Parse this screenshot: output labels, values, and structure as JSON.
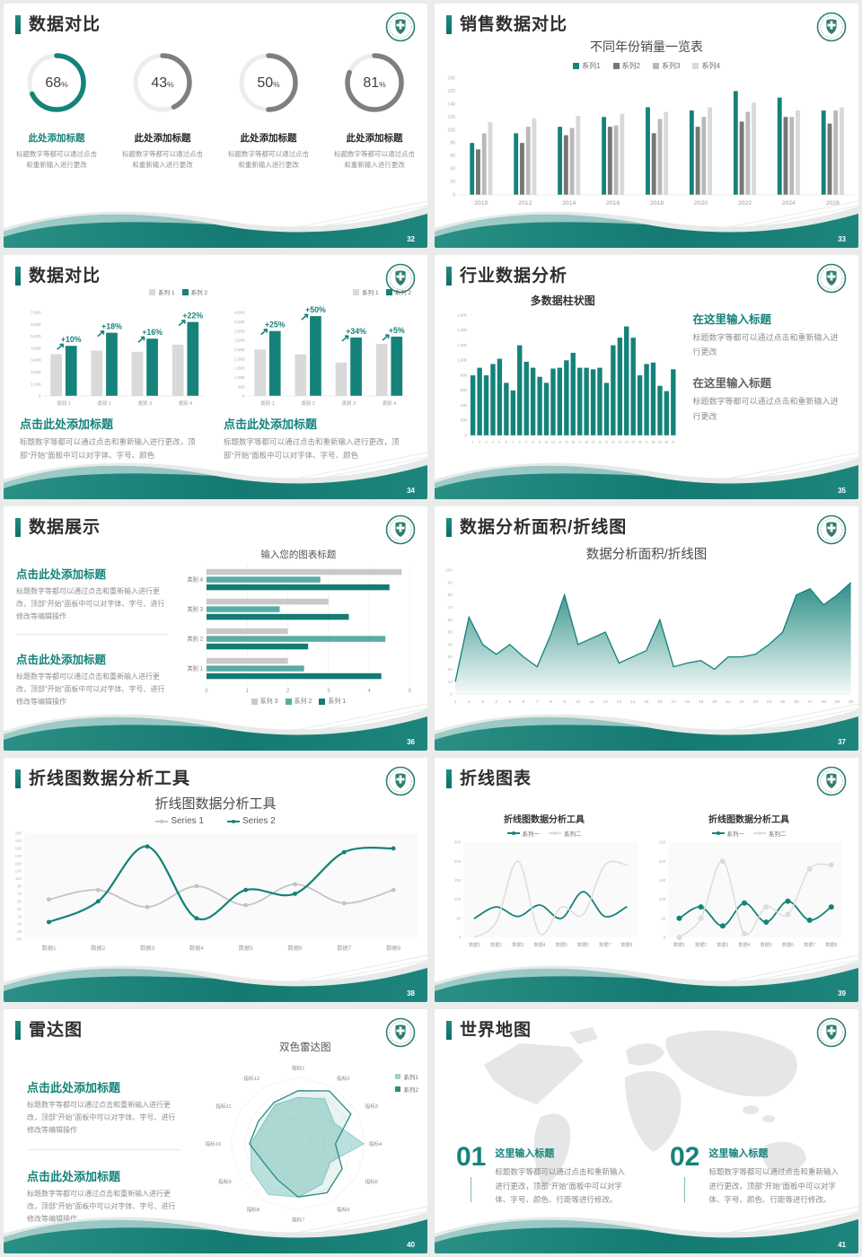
{
  "colors": {
    "teal": "#15837a",
    "teal_mid": "#58aca4",
    "teal_light": "#9fd2cc",
    "gray_dark": "#767676",
    "gray_mid": "#b9b9b9",
    "gray_light": "#d9d9d9",
    "text_dark": "#2d2d2d",
    "text_gray": "#8f8f8f"
  },
  "logo": {
    "name": "hospital-emblem"
  },
  "slides": [
    {
      "page": "32",
      "title": "数据对比",
      "type": "donuts",
      "chart_data": {
        "type": "donut-set",
        "items": [
          {
            "value": 68,
            "suffix": "%",
            "heading": "此处添加标题",
            "desc": "标题数字等都可以通过点击和重新输入进行更改",
            "highlight": true
          },
          {
            "value": 43,
            "suffix": "%",
            "heading": "此处添加标题",
            "desc": "标题数字等都可以通过点击和重新输入进行更改",
            "highlight": false
          },
          {
            "value": 50,
            "suffix": "%",
            "heading": "此处添加标题",
            "desc": "标题数字等都可以通过点击和重新输入进行更改",
            "highlight": false
          },
          {
            "value": 81,
            "suffix": "%",
            "heading": "此处添加标题",
            "desc": "标题数字等都可以通过点击和重新输入进行更改",
            "highlight": false
          }
        ]
      }
    },
    {
      "page": "33",
      "title": "销售数据对比",
      "chart_data": {
        "type": "bar",
        "title": "不同年份销量一览表",
        "categories": [
          "2010",
          "2012",
          "2014",
          "2016",
          "2018",
          "2020",
          "2022",
          "2024",
          "2026"
        ],
        "series": [
          {
            "name": "系列1",
            "color": "#15837a",
            "values": [
              80,
              95,
              105,
              120,
              135,
              130,
              160,
              150,
              130
            ]
          },
          {
            "name": "系列2",
            "color": "#767676",
            "values": [
              70,
              80,
              92,
              105,
              95,
              105,
              113,
              120,
              110
            ]
          },
          {
            "name": "系列3",
            "color": "#b9b9b9",
            "values": [
              95,
              105,
              103,
              107,
              117,
              120,
              128,
              120,
              130
            ]
          },
          {
            "name": "系列4",
            "color": "#d9d9d9",
            "values": [
              112,
              118,
              122,
              125,
              128,
              135,
              142,
              130,
              135
            ]
          }
        ],
        "ylim": [
          0,
          180
        ],
        "ystep": 20,
        "legend_position": "top",
        "grid": false
      }
    },
    {
      "page": "34",
      "title": "数据对比",
      "panels": [
        {
          "heading": "点击此处添加标题",
          "body": "标题数字等都可以通过点击和重新输入进行更改，顶部“开始”面板中可以对字体、字号、颜色",
          "chart_data": {
            "type": "bar",
            "categories": [
              "类别 1",
              "类别 2",
              "类别 3",
              "类别 4"
            ],
            "series": [
              {
                "name": "系列 1",
                "color": "#d9d9d9",
                "values": [
                  3500,
                  3800,
                  3700,
                  4300
                ]
              },
              {
                "name": "系列 2",
                "color": "#15837a",
                "values": [
                  4200,
                  5300,
                  4800,
                  6200
                ]
              }
            ],
            "ylim": [
              0,
              7000
            ],
            "ystep": 1000,
            "annotations": [
              "+10%",
              "+18%",
              "+16%",
              "+22%"
            ]
          }
        },
        {
          "heading": "点击此处添加标题",
          "body": "标题数字等都可以通过点击和重新输入进行更改，顶部“开始”面板中可以对字体、字号、颜色",
          "chart_data": {
            "type": "bar",
            "categories": [
              "类别 1",
              "类别 2",
              "类别 3",
              "类别 4"
            ],
            "series": [
              {
                "name": "系列 1",
                "color": "#d9d9d9",
                "values": [
                  2500,
                  2250,
                  1800,
                  2800
                ]
              },
              {
                "name": "系列 2",
                "color": "#15837a",
                "values": [
                  3500,
                  4300,
                  3150,
                  3200
                ]
              }
            ],
            "ylim": [
              0,
              4500
            ],
            "ystep": 500,
            "annotations": [
              "+25%",
              "+50%",
              "+34%",
              "+5%"
            ]
          }
        }
      ]
    },
    {
      "page": "35",
      "title": "行业数据分析",
      "chart_data": {
        "type": "bar",
        "title": "多数据柱状图",
        "categories": [
          "1",
          "2",
          "3",
          "4",
          "5",
          "6",
          "7",
          "8",
          "9",
          "10",
          "11",
          "12",
          "13",
          "14",
          "15",
          "16",
          "17",
          "18",
          "19",
          "20",
          "21",
          "22",
          "23",
          "24",
          "25",
          "26",
          "27",
          "28",
          "29",
          "30",
          "31"
        ],
        "values": [
          800,
          900,
          800,
          950,
          1020,
          700,
          600,
          1200,
          980,
          900,
          780,
          700,
          890,
          900,
          1000,
          1100,
          900,
          900,
          880,
          900,
          700,
          1200,
          1300,
          1450,
          1300,
          800,
          950,
          970,
          660,
          590,
          880
        ],
        "bar_color": "#15837a",
        "ylim": [
          0,
          1600
        ],
        "ystep": 200
      },
      "notes": [
        {
          "heading": "在这里输入标题",
          "style": "teal",
          "body": "标题数字等都可以通过点击和重新输入进行更改"
        },
        {
          "heading": "在这里输入标题",
          "style": "gray",
          "body": "标题数字等都可以通过点击和重新输入进行更改"
        }
      ]
    },
    {
      "page": "36",
      "title": "数据展示",
      "notes": [
        {
          "heading": "点击此处添加标题",
          "body": "标题数字等都可以通过点击和重新输入进行更改，顶部“开始”面板中可以对字体、字号、进行修改等编辑操作"
        },
        {
          "heading": "点击此处添加标题",
          "body": "标题数字等都可以通过点击和重新输入进行更改，顶部“开始”面板中可以对字体、字号、进行修改等编辑操作"
        }
      ],
      "chart_data": {
        "type": "hbar",
        "title": "输入您的图表标题",
        "categories": [
          "类别 4",
          "类别 3",
          "类别 2",
          "类别 1"
        ],
        "series": [
          {
            "name": "系列 3",
            "color": "#c9c9c9",
            "values": [
              4.8,
              3.0,
              2.0,
              2.0
            ]
          },
          {
            "name": "系列 2",
            "color": "#58aca4",
            "values": [
              2.8,
              1.8,
              4.4,
              2.4
            ]
          },
          {
            "name": "系列 1",
            "color": "#147b74",
            "values": [
              4.5,
              3.5,
              2.5,
              4.3
            ]
          }
        ],
        "xlim": [
          0,
          5
        ],
        "xstep": 1,
        "grid": true,
        "legend_position": "bottom"
      }
    },
    {
      "page": "37",
      "title": "数据分析面积/折线图",
      "chart_data": {
        "type": "area",
        "title": "数据分析面积/折线图",
        "x": [
          "1",
          "2",
          "3",
          "4",
          "5",
          "6",
          "7",
          "8",
          "9",
          "10",
          "11",
          "12",
          "13",
          "14",
          "15",
          "16",
          "17",
          "18",
          "19",
          "20",
          "21",
          "22",
          "23",
          "24",
          "25",
          "26",
          "27",
          "28",
          "29",
          "30"
        ],
        "values": [
          10,
          62,
          40,
          32,
          40,
          30,
          22,
          48,
          80,
          40,
          45,
          50,
          25,
          30,
          35,
          60,
          22,
          25,
          27,
          20,
          30,
          30,
          32,
          40,
          50,
          80,
          85,
          72,
          80,
          90
        ],
        "line_color": "#15837a",
        "ylim": [
          0,
          100
        ],
        "ystep": 10
      }
    },
    {
      "page": "38",
      "title": "折线图数据分析工具",
      "chart_data": {
        "type": "line",
        "title": "折线图数据分析工具",
        "categories": [
          "数据1",
          "数据2",
          "数据3",
          "数据4",
          "数据5",
          "数据6",
          "数据7",
          "数据8"
        ],
        "series": [
          {
            "name": "Series 1",
            "color": "#c4c4c4",
            "values": [
              55,
              80,
              35,
              90,
              40,
              95,
              45,
              80
            ],
            "markers": true
          },
          {
            "name": "Series 2",
            "color": "#15837a",
            "values": [
              -5,
              50,
              195,
              5,
              80,
              70,
              180,
              190
            ],
            "markers": true
          }
        ],
        "ylim": [
          -50,
          230
        ],
        "ystep": 20,
        "legend_position": "top",
        "smooth": true
      }
    },
    {
      "page": "39",
      "title": "折线图表",
      "charts": [
        {
          "type": "line",
          "title": "折线图数据分析工具",
          "categories": [
            "数据1",
            "数据2",
            "数据3",
            "数据4",
            "数据5",
            "数据6",
            "数据7",
            "数据8"
          ],
          "series": [
            {
              "name": "系列一",
              "color": "#15837a",
              "values": [
                50,
                80,
                55,
                85,
                50,
                120,
                55,
                80
              ],
              "markers": false
            },
            {
              "name": "系列二",
              "color": "#dcdcdc",
              "values": [
                0,
                40,
                200,
                10,
                80,
                60,
                190,
                190
              ],
              "markers": false
            }
          ],
          "ylim": [
            0,
            250
          ],
          "ystep": 50,
          "smooth": true
        },
        {
          "type": "line",
          "title": "折线图数据分析工具",
          "categories": [
            "数据1",
            "数据2",
            "数据3",
            "数据4",
            "数据5",
            "数据6",
            "数据7",
            "数据8"
          ],
          "series": [
            {
              "name": "系列一",
              "color": "#15837a",
              "values": [
                50,
                80,
                30,
                90,
                40,
                95,
                45,
                80
              ],
              "markers": true
            },
            {
              "name": "系列二",
              "color": "#dcdcdc",
              "values": [
                0,
                50,
                200,
                10,
                80,
                60,
                180,
                190
              ],
              "markers": true
            }
          ],
          "ylim": [
            0,
            250
          ],
          "ystep": 50,
          "smooth": true
        }
      ]
    },
    {
      "page": "40",
      "title": "雷达图",
      "notes": [
        {
          "heading": "点击此处添加标题",
          "body": "标题数字等都可以通过点击和重新输入进行更改，顶部“开始”面板中可以对字体、字号、进行修改等编辑操作"
        },
        {
          "heading": "点击此处添加标题",
          "body": "标题数字等都可以通过点击和重新输入进行更改，顶部“开始”面板中可以对字体、字号、进行修改等编辑操作"
        }
      ],
      "chart_data": {
        "type": "radar",
        "title": "双色雷达图",
        "axes": [
          "指标1",
          "指标2",
          "指标3",
          "指标4",
          "指标5",
          "指标6",
          "指标7",
          "指标8",
          "指标9",
          "指标10",
          "指标11",
          "指标12"
        ],
        "series": [
          {
            "name": "系列1",
            "color": "#9fd2cc",
            "values": [
              70,
              78,
              62,
              97,
              55,
              70,
              80,
              88,
              80,
              70,
              60,
              68
            ]
          },
          {
            "name": "系列2",
            "color": "#2a8d84",
            "values": [
              80,
              92,
              90,
              55,
              75,
              85,
              80,
              62,
              58,
              72,
              68,
              72
            ]
          }
        ],
        "rmax": 100,
        "legend_position": "right"
      }
    },
    {
      "page": "41",
      "title": "世界地图",
      "items": [
        {
          "num": "01",
          "heading": "这里输入标题",
          "body": "标题数字等都可以通过点击和重新输入进行更改，顶部“开始”面板中可以对字体、字号、颜色、行距等进行修改。"
        },
        {
          "num": "02",
          "heading": "这里输入标题",
          "body": "标题数字等都可以通过点击和重新输入进行更改，顶部“开始”面板中可以对字体、字号、颜色、行距等进行修改。"
        }
      ]
    }
  ]
}
